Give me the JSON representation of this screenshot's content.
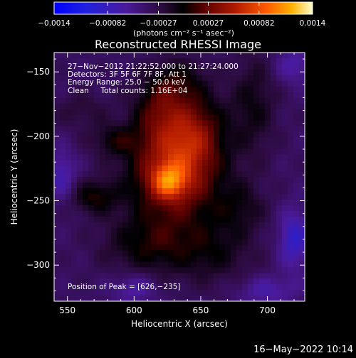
{
  "chart_data": {
    "type": "heatmap",
    "title": "Reconstructed RHESSI Image",
    "xlabel": "Heliocentric X (arcsec)",
    "ylabel": "Heliocentric Y (arcsec)",
    "xlim": [
      540,
      728
    ],
    "ylim": [
      -328,
      -135
    ],
    "x_ticks": [
      {
        "value": 550,
        "label": "550"
      },
      {
        "value": 600,
        "label": "600"
      },
      {
        "value": 650,
        "label": "650"
      },
      {
        "value": 700,
        "label": "700"
      }
    ],
    "y_ticks": [
      {
        "value": -150,
        "label": "−150"
      },
      {
        "value": -200,
        "label": "−200"
      },
      {
        "value": -250,
        "label": "−250"
      },
      {
        "value": -300,
        "label": "−300"
      }
    ],
    "colorbar": {
      "range": [
        -0.0014,
        0.0014
      ],
      "ticks": [
        {
          "value": -0.0014,
          "label": "−0.0014"
        },
        {
          "value": -0.00082,
          "label": "−0.00082"
        },
        {
          "value": -0.00027,
          "label": "−0.00027"
        },
        {
          "value": 0.00027,
          "label": "0.00027"
        },
        {
          "value": 0.00082,
          "label": "0.00082"
        },
        {
          "value": 0.0014,
          "label": "0.0014"
        }
      ],
      "unit_label": "(photons cm⁻² s⁻¹ asec⁻²)"
    },
    "annotations": [
      "27−Nov−2012 21:22:52.000 to 21:27:24.000",
      "Detectors: 3F 5F 6F 7F 8F, Att 1",
      "Energy Range: 25.0 − 50.0 keV",
      "Clean     Total counts: 1.16E+04"
    ],
    "peak_label": "Position of Peak = [626,−235]",
    "peak": {
      "x": 626,
      "y": -235,
      "value": 0.0014
    },
    "intensity_blobs": [
      {
        "x": 626,
        "y": -235,
        "sx": 9,
        "sy": 9,
        "amp": 0.00065
      },
      {
        "x": 630,
        "y": -225,
        "sx": 24,
        "sy": 30,
        "amp": 0.0009
      },
      {
        "x": 645,
        "y": -195,
        "sx": 16,
        "sy": 22,
        "amp": 0.00045
      },
      {
        "x": 618,
        "y": -178,
        "sx": 12,
        "sy": 16,
        "amp": 0.00035
      },
      {
        "x": 632,
        "y": -157,
        "sx": 14,
        "sy": 12,
        "amp": 0.0003
      },
      {
        "x": 570,
        "y": -247,
        "sx": 12,
        "sy": 9,
        "amp": 0.00042
      },
      {
        "x": 585,
        "y": -203,
        "sx": 12,
        "sy": 8,
        "amp": 0.0003
      },
      {
        "x": 610,
        "y": -285,
        "sx": 24,
        "sy": 16,
        "amp": 0.00035
      },
      {
        "x": 660,
        "y": -290,
        "sx": 22,
        "sy": 18,
        "amp": 0.00028
      },
      {
        "x": 690,
        "y": -175,
        "sx": 12,
        "sy": 28,
        "amp": 0.0003
      },
      {
        "x": 680,
        "y": -255,
        "sx": 14,
        "sy": 14,
        "amp": 0.00026
      },
      {
        "x": 560,
        "y": -180,
        "sx": 14,
        "sy": 10,
        "amp": 0.00018
      },
      {
        "x": 720,
        "y": -280,
        "sx": 8,
        "sy": 16,
        "amp": -0.0005
      },
      {
        "x": 545,
        "y": -230,
        "sx": 8,
        "sy": 14,
        "amp": -0.00035
      },
      {
        "x": 600,
        "y": -318,
        "sx": 12,
        "sy": 8,
        "amp": -0.0003
      },
      {
        "x": 700,
        "y": -320,
        "sx": 16,
        "sy": 8,
        "amp": -0.0003
      },
      {
        "x": 720,
        "y": -145,
        "sx": 10,
        "sy": 10,
        "amp": -0.0003
      }
    ],
    "grid": false
  },
  "footer": {
    "timestamp": "16−May−2022 10:14"
  }
}
